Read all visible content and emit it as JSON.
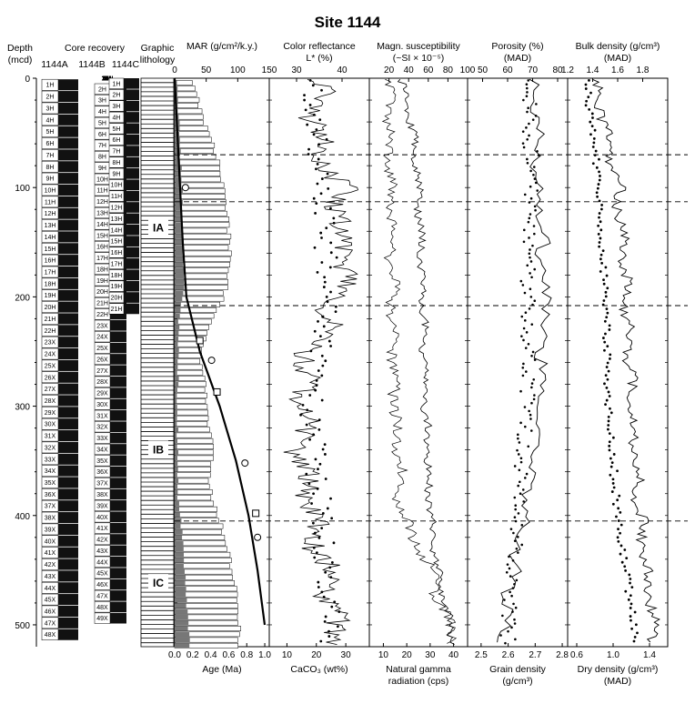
{
  "chart_data": {
    "type": "line",
    "title": "Site  1144",
    "depth_axis": {
      "label": "Depth",
      "unit": "(mcd)",
      "range": [
        0,
        520
      ],
      "ticks": [
        "0",
        "100",
        "200",
        "300",
        "400",
        "500"
      ]
    },
    "core_recovery": {
      "label": "Core recovery",
      "holes": [
        "1144A",
        "1144B",
        "1144C"
      ],
      "hole_a": [
        "1H",
        "2H",
        "3H",
        "4H",
        "5H",
        "6H",
        "7H",
        "8H",
        "9H",
        "10H",
        "11H",
        "12H",
        "13H",
        "14H",
        "15H",
        "16H",
        "17H",
        "18H",
        "19H",
        "20H",
        "21H",
        "22H",
        "23X",
        "24X",
        "25X",
        "26X",
        "27X",
        "28X",
        "29X",
        "30X",
        "31X",
        "32X",
        "33X",
        "34X",
        "35X",
        "36X",
        "37X",
        "38X",
        "39X",
        "40X",
        "41X",
        "42X",
        "43X",
        "44X",
        "45X",
        "46X",
        "47X",
        "48X"
      ],
      "hole_b": [
        "2H",
        "3H",
        "4H",
        "5H",
        "6H",
        "7H",
        "8H",
        "9H",
        "10H",
        "11H",
        "12H",
        "13H",
        "14H",
        "15H",
        "16H",
        "17H",
        "18H",
        "19H",
        "20H",
        "21H",
        "22H",
        "23X",
        "24X",
        "25X",
        "26X",
        "27X",
        "28X",
        "29X",
        "30X",
        "31X",
        "32X",
        "33X",
        "34X",
        "35X",
        "36X",
        "37X",
        "38X",
        "39X",
        "40X",
        "41X",
        "42X",
        "43X",
        "44X",
        "45X",
        "46X",
        "47X",
        "48X",
        "49X"
      ],
      "hole_c": [
        "1H",
        "2H",
        "3H",
        "4H",
        "5H",
        "6H",
        "7H",
        "8H",
        "9H",
        "10H",
        "11H",
        "12H",
        "13H",
        "14H",
        "15H",
        "16H",
        "17H",
        "18H",
        "19H",
        "20H",
        "21H"
      ]
    },
    "lithology": {
      "label": "Graphic\nlithology",
      "units": [
        "IA",
        "IB",
        "IC"
      ]
    },
    "unit_boundaries_mcd": [
      70,
      113,
      208,
      405
    ],
    "panels": [
      {
        "key": "mar",
        "label": "MAR (g/cm²/k.y.)",
        "top_ticks": [
          "0",
          "50",
          "100",
          "150"
        ],
        "top_range": [
          0,
          150
        ],
        "bottom_label": "Age (Ma)",
        "bottom_ticks": [
          "0.0",
          "0.2",
          "0.4",
          "0.6",
          "0.8",
          "1.0"
        ],
        "bottom_range": [
          0,
          1.05
        ],
        "mar_total": [
          [
            0,
            30
          ],
          [
            20,
            38
          ],
          [
            40,
            48
          ],
          [
            60,
            62
          ],
          [
            80,
            72
          ],
          [
            100,
            78
          ],
          [
            120,
            82
          ],
          [
            140,
            86
          ],
          [
            160,
            88
          ],
          [
            180,
            84
          ],
          [
            200,
            78
          ],
          [
            220,
            60
          ],
          [
            240,
            45
          ],
          [
            260,
            42
          ],
          [
            280,
            48
          ],
          [
            300,
            50
          ],
          [
            320,
            56
          ],
          [
            340,
            60
          ],
          [
            360,
            55
          ],
          [
            380,
            58
          ],
          [
            400,
            70
          ],
          [
            420,
            80
          ],
          [
            440,
            88
          ],
          [
            460,
            95
          ],
          [
            480,
            100
          ],
          [
            500,
            103
          ],
          [
            515,
            100
          ]
        ],
        "mar_filled": [
          [
            0,
            2
          ],
          [
            100,
            10
          ],
          [
            160,
            12
          ],
          [
            190,
            14
          ],
          [
            220,
            5
          ],
          [
            300,
            3
          ],
          [
            380,
            3
          ],
          [
            420,
            12
          ],
          [
            460,
            15
          ],
          [
            500,
            20
          ],
          [
            515,
            22
          ]
        ],
        "age_model": [
          [
            0,
            0.0
          ],
          [
            50,
            0.03
          ],
          [
            100,
            0.06
          ],
          [
            150,
            0.09
          ],
          [
            200,
            0.13
          ],
          [
            250,
            0.28
          ],
          [
            300,
            0.5
          ],
          [
            350,
            0.68
          ],
          [
            400,
            0.82
          ],
          [
            450,
            0.92
          ],
          [
            500,
            1.0
          ]
        ],
        "age_circles": [
          [
            100,
            0.12
          ],
          [
            258,
            0.41
          ],
          [
            352,
            0.78
          ],
          [
            420,
            0.92
          ]
        ],
        "age_squares": [
          [
            240,
            0.28
          ],
          [
            287,
            0.47
          ],
          [
            398,
            0.9
          ]
        ]
      },
      {
        "key": "color",
        "label": "Color reflectance",
        "label2": "L* (%)",
        "top_ticks": [
          "30",
          "40"
        ],
        "top_range": [
          24,
          46
        ],
        "bottom_label": "CaCO₃ (wt%)",
        "bottom_ticks": [
          "10",
          "20",
          "30"
        ],
        "bottom_range": [
          4,
          38
        ]
      },
      {
        "key": "mag",
        "label": "Magn. susceptibility",
        "label2": "(~SI × 10⁻⁵)",
        "top_ticks": [
          "20",
          "40",
          "60",
          "80",
          "100"
        ],
        "top_range": [
          0,
          100
        ],
        "bottom_label": "Natural gamma",
        "bottom_label2": "radiation (cps)",
        "bottom_ticks": [
          "10",
          "20",
          "30",
          "40"
        ],
        "bottom_range": [
          4,
          46
        ]
      },
      {
        "key": "por",
        "label": "Porosity  (%)",
        "label2": "(MAD)",
        "top_ticks": [
          "50",
          "60",
          "70",
          "80"
        ],
        "top_range": [
          44,
          84
        ],
        "bottom_label": "Grain  density",
        "bottom_label2": "(g/cm³)",
        "bottom_ticks": [
          "2.5",
          "2.6",
          "2.7",
          "2.8"
        ],
        "bottom_range": [
          2.45,
          2.82
        ]
      },
      {
        "key": "den",
        "label": "Bulk density (g/cm³)",
        "label2": "(MAD)",
        "top_ticks": [
          "1.2",
          "1.4",
          "1.6",
          "1.8"
        ],
        "top_range": [
          1.2,
          2.0
        ],
        "bottom_label": "Dry density (g/cm³)",
        "bottom_label2": "(MAD)",
        "bottom_ticks": [
          "0.6",
          "1.0",
          "1.4"
        ],
        "bottom_range": [
          0.5,
          1.6
        ]
      }
    ]
  }
}
